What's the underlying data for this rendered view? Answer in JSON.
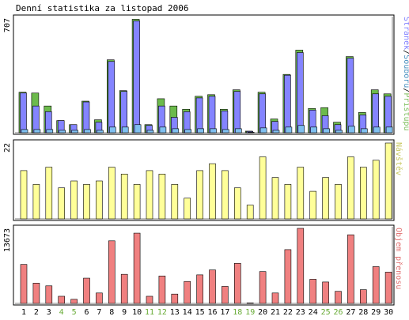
{
  "chart_data": [
    {
      "type": "bar",
      "panel": "top",
      "title": "Denní statistika za listopad 2006",
      "y_max_label": "707",
      "ylim": [
        0,
        707
      ],
      "categories": [
        "1",
        "2",
        "3",
        "4",
        "5",
        "6",
        "7",
        "8",
        "9",
        "10",
        "11",
        "12",
        "13",
        "14",
        "15",
        "16",
        "17",
        "18",
        "19",
        "20",
        "21",
        "22",
        "23",
        "24",
        "25",
        "26",
        "27",
        "28",
        "29",
        "30"
      ],
      "weekend_days": [
        "4",
        "5",
        "11",
        "12",
        "18",
        "19",
        "25",
        "26"
      ],
      "legend": [
        "Stránek",
        "Souborů",
        "Přístupů"
      ],
      "legend_colors": [
        "#8080ff",
        "#4a90c0",
        "#80c060"
      ],
      "series": [
        {
          "name": "Přístupů",
          "color": "#6cba4c",
          "values": [
            250,
            245,
            165,
            75,
            50,
            195,
            80,
            450,
            260,
            700,
            50,
            210,
            165,
            145,
            225,
            235,
            145,
            265,
            10,
            250,
            85,
            360,
            510,
            150,
            155,
            65,
            470,
            125,
            265,
            240
          ]
        },
        {
          "name": "Stránek",
          "color": "#8484ff",
          "values": [
            245,
            165,
            130,
            75,
            50,
            190,
            65,
            440,
            255,
            690,
            45,
            165,
            95,
            130,
            215,
            225,
            135,
            255,
            8,
            240,
            70,
            355,
            495,
            140,
            105,
            50,
            460,
            110,
            240,
            225
          ]
        },
        {
          "name": "Souborů",
          "color": "#7fbff0",
          "values": [
            20,
            20,
            20,
            15,
            15,
            20,
            15,
            35,
            35,
            50,
            15,
            35,
            25,
            20,
            25,
            25,
            20,
            25,
            3,
            30,
            15,
            35,
            45,
            35,
            25,
            15,
            40,
            25,
            35,
            35
          ]
        }
      ]
    },
    {
      "type": "bar",
      "panel": "middle",
      "y_max_label": "22",
      "ylim": [
        0,
        22
      ],
      "ylabel": "Návštěv",
      "categories": [
        "1",
        "2",
        "3",
        "4",
        "5",
        "6",
        "7",
        "8",
        "9",
        "10",
        "11",
        "12",
        "13",
        "14",
        "15",
        "16",
        "17",
        "18",
        "19",
        "20",
        "21",
        "22",
        "23",
        "24",
        "25",
        "26",
        "27",
        "28",
        "29",
        "30"
      ],
      "series": [
        {
          "name": "Návštěv",
          "color": "#ffff99",
          "values": [
            14,
            10,
            15,
            9,
            11,
            10,
            11,
            15,
            13,
            10,
            14,
            13,
            10,
            6,
            14,
            16,
            14,
            9,
            4,
            18,
            12,
            10,
            15,
            8,
            12,
            10,
            18,
            15,
            17,
            22
          ]
        }
      ]
    },
    {
      "type": "bar",
      "panel": "bottom",
      "y_max_label": "13673",
      "ylim": [
        0,
        13673
      ],
      "ylabel": "Objem přenosu",
      "categories": [
        "1",
        "2",
        "3",
        "4",
        "5",
        "6",
        "7",
        "8",
        "9",
        "10",
        "11",
        "12",
        "13",
        "14",
        "15",
        "16",
        "17",
        "18",
        "19",
        "20",
        "21",
        "22",
        "23",
        "24",
        "25",
        "26",
        "27",
        "28",
        "29",
        "30"
      ],
      "series": [
        {
          "name": "Objem přenosu",
          "color": "#f08080",
          "values": [
            7100,
            3700,
            3200,
            1300,
            750,
            4600,
            1900,
            11400,
            5300,
            12800,
            1300,
            5000,
            1700,
            4000,
            5200,
            6100,
            3100,
            7300,
            100,
            5800,
            1900,
            9800,
            13673,
            4400,
            3900,
            2200,
            12500,
            2500,
            6700,
            5700
          ]
        }
      ]
    }
  ]
}
